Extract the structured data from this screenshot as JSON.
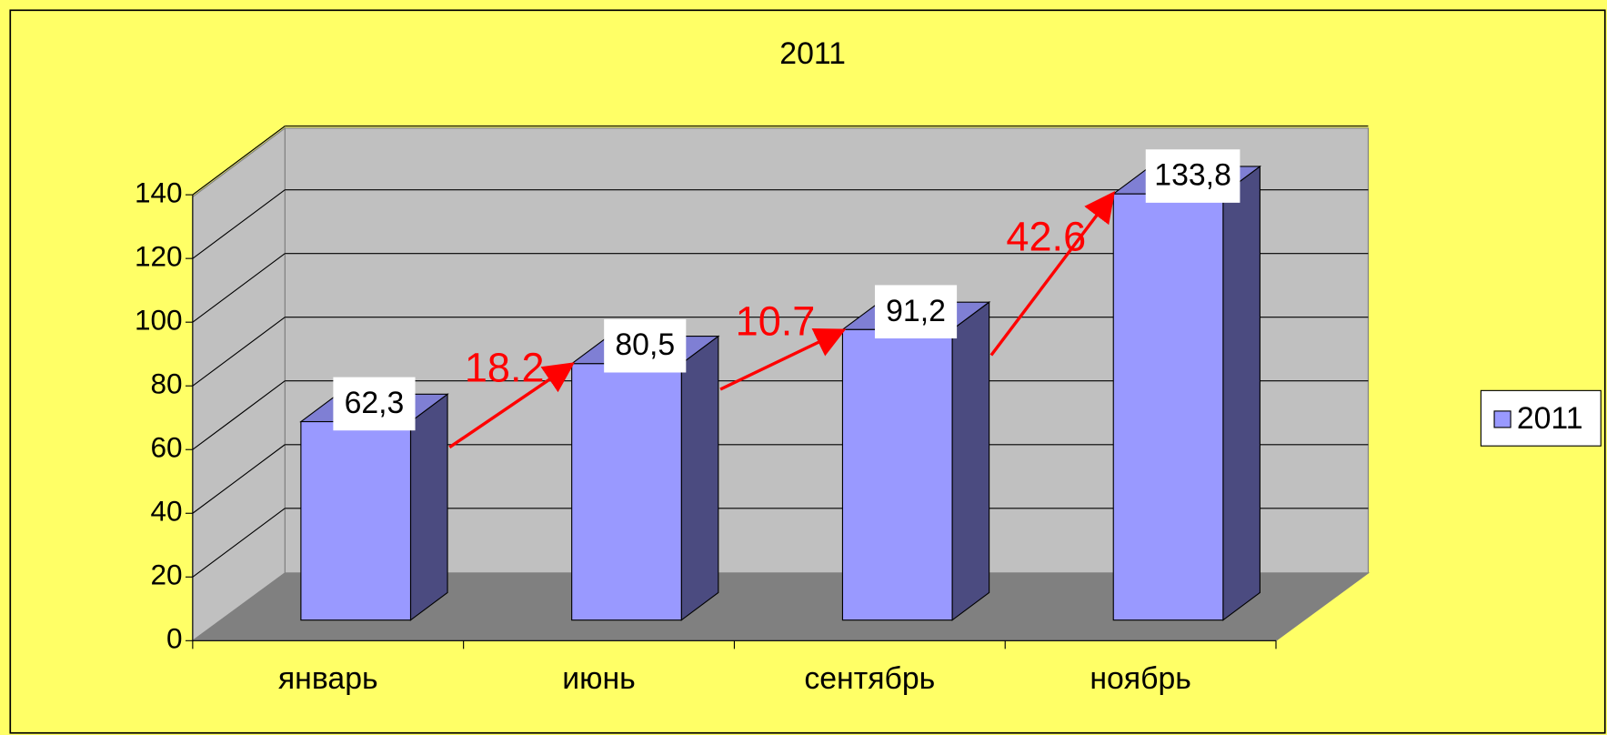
{
  "chart_data": {
    "type": "bar3d",
    "title": "2011",
    "categories": [
      "январь",
      "июнь",
      "сентябрь",
      "ноябрь"
    ],
    "series": [
      {
        "name": "2011",
        "color": "#9999ff",
        "values": [
          62.3,
          80.5,
          91.2,
          133.8
        ],
        "value_labels": [
          "62,3",
          "80,5",
          "91,2",
          "133,8"
        ]
      }
    ],
    "ylim": [
      0,
      140
    ],
    "yticks": [
      0,
      20,
      40,
      60,
      80,
      100,
      120,
      140
    ],
    "grid": true,
    "legend": "right",
    "annotations": [
      {
        "text": "18.2",
        "color": "#ff0000"
      },
      {
        "text": "10.7",
        "color": "#ff0000"
      },
      {
        "text": "42.6",
        "color": "#ff0000"
      }
    ]
  }
}
